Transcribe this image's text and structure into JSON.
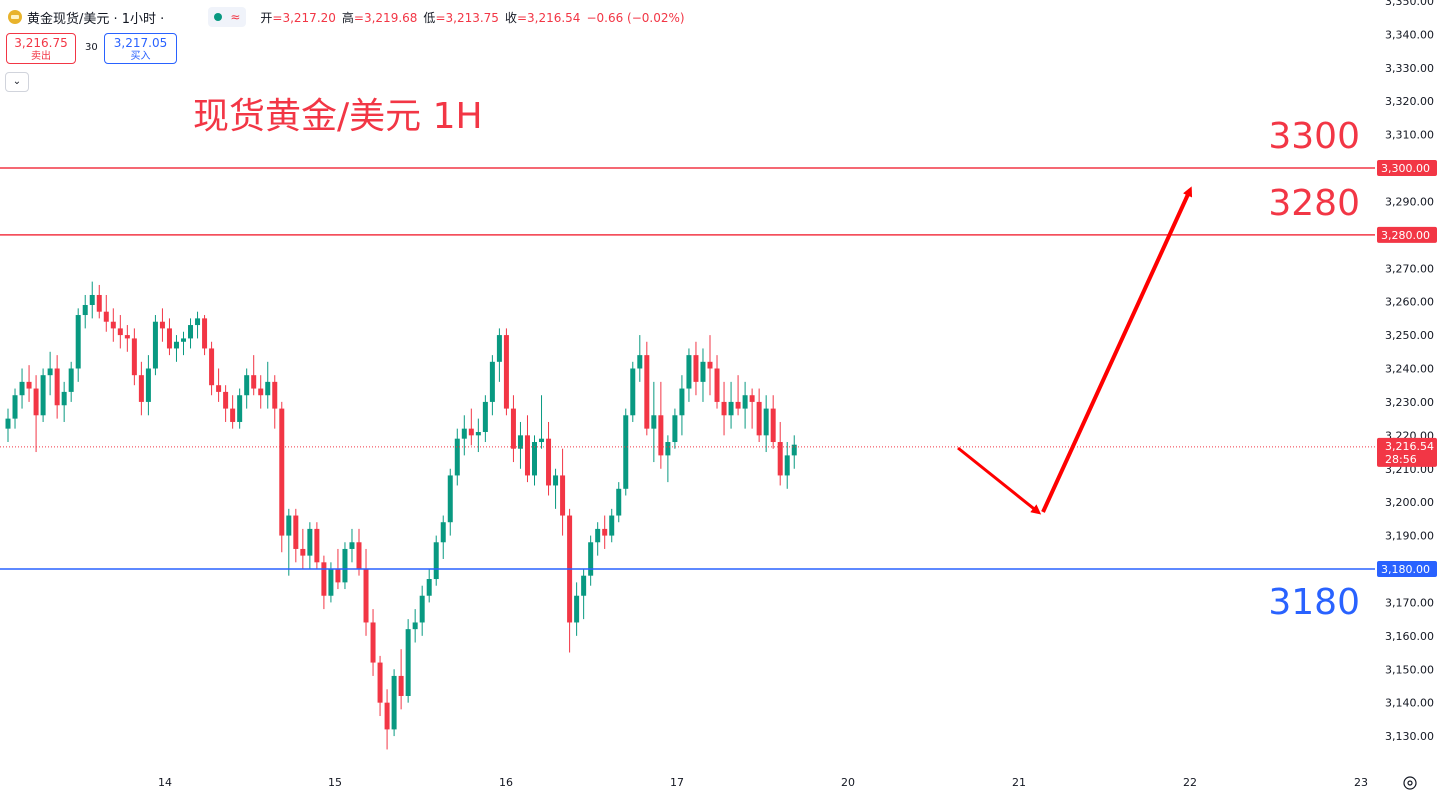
{
  "header": {
    "symbol": "黄金现货/美元 · 1小时 ·",
    "wave_icon": "≈",
    "ohlc": [
      {
        "label": "开",
        "value": "=3,217.20"
      },
      {
        "label": "高",
        "value": "=3,219.68"
      },
      {
        "label": "低",
        "value": "=3,213.75"
      },
      {
        "label": "收",
        "value": "=3,216.54"
      },
      {
        "label": "",
        "value": "−0.66 (−0.02%)"
      }
    ]
  },
  "quote": {
    "sell_price": "3,216.75",
    "sell_label": "卖出",
    "spread": "30",
    "buy_price": "3,217.05",
    "buy_label": "买入"
  },
  "collapse_icon": "⌄",
  "colors": {
    "up": "#089981",
    "down": "#f23645",
    "resistance": "#f23645",
    "support": "#2962ff",
    "arrow": "#ff0000",
    "axis_text": "#131722"
  },
  "chart_data": {
    "type": "candlestick",
    "title": "现货黄金/美元 1H",
    "x_tick_labels": [
      "14",
      "15",
      "16",
      "17",
      "20",
      "21",
      "22",
      "23"
    ],
    "y_tick_labels": [
      "3,130.00",
      "3,140.00",
      "3,150.00",
      "3,160.00",
      "3,170.00",
      "3,180.00",
      "3,190.00",
      "3,200.00",
      "3,210.00",
      "3,220.00",
      "3,230.00",
      "3,240.00",
      "3,250.00",
      "3,260.00",
      "3,270.00",
      "3,280.00",
      "3,290.00",
      "3,300.00",
      "3,310.00",
      "3,320.00",
      "3,330.00",
      "3,340.00",
      "3,350.00"
    ],
    "ylim": [
      3123,
      3358
    ],
    "levels": [
      {
        "value": 3300,
        "label": "3300",
        "axis_label": "3,300.00",
        "color": "#f23645"
      },
      {
        "value": 3280,
        "label": "3280",
        "axis_label": "3,280.00",
        "color": "#f23645"
      },
      {
        "value": 3180,
        "label": "3180",
        "axis_label": "3,180.00",
        "color": "#2962ff"
      }
    ],
    "last_price": {
      "value": 3216.54,
      "label": "3,216.54",
      "countdown": "28:56"
    },
    "candles": [
      [
        3222,
        3228,
        3218,
        3225
      ],
      [
        3225,
        3234,
        3222,
        3232
      ],
      [
        3232,
        3240,
        3228,
        3236
      ],
      [
        3236,
        3241,
        3230,
        3234
      ],
      [
        3234,
        3238,
        3215,
        3226
      ],
      [
        3226,
        3240,
        3224,
        3238
      ],
      [
        3238,
        3245,
        3232,
        3240
      ],
      [
        3240,
        3244,
        3225,
        3229
      ],
      [
        3229,
        3236,
        3224,
        3233
      ],
      [
        3233,
        3242,
        3230,
        3240
      ],
      [
        3240,
        3258,
        3236,
        3256
      ],
      [
        3256,
        3262,
        3252,
        3259
      ],
      [
        3259,
        3266,
        3255,
        3262
      ],
      [
        3262,
        3265,
        3255,
        3257
      ],
      [
        3257,
        3262,
        3251,
        3254
      ],
      [
        3254,
        3258,
        3248,
        3252
      ],
      [
        3252,
        3256,
        3246,
        3250
      ],
      [
        3250,
        3253,
        3245,
        3249
      ],
      [
        3249,
        3252,
        3235,
        3238
      ],
      [
        3238,
        3242,
        3226,
        3230
      ],
      [
        3230,
        3244,
        3226,
        3240
      ],
      [
        3240,
        3256,
        3238,
        3254
      ],
      [
        3254,
        3258,
        3248,
        3252
      ],
      [
        3252,
        3255,
        3244,
        3246
      ],
      [
        3246,
        3250,
        3242,
        3248
      ],
      [
        3248,
        3251,
        3244,
        3249
      ],
      [
        3249,
        3255,
        3246,
        3253
      ],
      [
        3253,
        3257,
        3249,
        3255
      ],
      [
        3255,
        3256,
        3244,
        3246
      ],
      [
        3246,
        3248,
        3232,
        3235
      ],
      [
        3235,
        3240,
        3230,
        3233
      ],
      [
        3233,
        3235,
        3224,
        3228
      ],
      [
        3228,
        3232,
        3222,
        3224
      ],
      [
        3224,
        3234,
        3222,
        3232
      ],
      [
        3232,
        3240,
        3228,
        3238
      ],
      [
        3238,
        3244,
        3232,
        3234
      ],
      [
        3234,
        3238,
        3228,
        3232
      ],
      [
        3232,
        3242,
        3228,
        3236
      ],
      [
        3236,
        3238,
        3222,
        3228
      ],
      [
        3228,
        3230,
        3185,
        3190
      ],
      [
        3190,
        3198,
        3178,
        3196
      ],
      [
        3196,
        3198,
        3182,
        3186
      ],
      [
        3186,
        3192,
        3180,
        3184
      ],
      [
        3184,
        3194,
        3180,
        3192
      ],
      [
        3192,
        3194,
        3180,
        3182
      ],
      [
        3182,
        3184,
        3168,
        3172
      ],
      [
        3172,
        3182,
        3170,
        3180
      ],
      [
        3180,
        3186,
        3174,
        3176
      ],
      [
        3176,
        3188,
        3174,
        3186
      ],
      [
        3186,
        3192,
        3182,
        3188
      ],
      [
        3188,
        3192,
        3178,
        3180
      ],
      [
        3180,
        3186,
        3160,
        3164
      ],
      [
        3164,
        3168,
        3148,
        3152
      ],
      [
        3152,
        3154,
        3136,
        3140
      ],
      [
        3140,
        3144,
        3126,
        3132
      ],
      [
        3132,
        3150,
        3130,
        3148
      ],
      [
        3148,
        3156,
        3138,
        3142
      ],
      [
        3142,
        3165,
        3140,
        3162
      ],
      [
        3162,
        3168,
        3158,
        3164
      ],
      [
        3164,
        3175,
        3160,
        3172
      ],
      [
        3172,
        3180,
        3170,
        3177
      ],
      [
        3177,
        3190,
        3175,
        3188
      ],
      [
        3188,
        3196,
        3183,
        3194
      ],
      [
        3194,
        3210,
        3190,
        3208
      ],
      [
        3208,
        3222,
        3205,
        3219
      ],
      [
        3219,
        3226,
        3214,
        3222
      ],
      [
        3222,
        3228,
        3217,
        3220
      ],
      [
        3220,
        3225,
        3215,
        3221
      ],
      [
        3221,
        3232,
        3218,
        3230
      ],
      [
        3230,
        3244,
        3226,
        3242
      ],
      [
        3242,
        3252,
        3236,
        3250
      ],
      [
        3250,
        3252,
        3226,
        3228
      ],
      [
        3228,
        3232,
        3212,
        3216
      ],
      [
        3216,
        3224,
        3210,
        3220
      ],
      [
        3220,
        3226,
        3206,
        3208
      ],
      [
        3208,
        3220,
        3205,
        3218
      ],
      [
        3218,
        3232,
        3216,
        3219
      ],
      [
        3219,
        3224,
        3202,
        3205
      ],
      [
        3205,
        3210,
        3198,
        3208
      ],
      [
        3208,
        3216,
        3190,
        3196
      ],
      [
        3196,
        3198,
        3155,
        3164
      ],
      [
        3164,
        3176,
        3160,
        3172
      ],
      [
        3172,
        3180,
        3165,
        3178
      ],
      [
        3178,
        3190,
        3175,
        3188
      ],
      [
        3188,
        3194,
        3184,
        3192
      ],
      [
        3192,
        3196,
        3186,
        3190
      ],
      [
        3190,
        3198,
        3188,
        3196
      ],
      [
        3196,
        3206,
        3194,
        3204
      ],
      [
        3204,
        3228,
        3202,
        3226
      ],
      [
        3226,
        3242,
        3224,
        3240
      ],
      [
        3240,
        3250,
        3236,
        3244
      ],
      [
        3244,
        3248,
        3220,
        3222
      ],
      [
        3222,
        3236,
        3212,
        3226
      ],
      [
        3226,
        3236,
        3210,
        3214
      ],
      [
        3214,
        3220,
        3206,
        3218
      ],
      [
        3218,
        3228,
        3216,
        3226
      ],
      [
        3226,
        3238,
        3220,
        3234
      ],
      [
        3234,
        3246,
        3230,
        3244
      ],
      [
        3244,
        3248,
        3232,
        3236
      ],
      [
        3236,
        3246,
        3230,
        3242
      ],
      [
        3242,
        3250,
        3232,
        3240
      ],
      [
        3240,
        3244,
        3228,
        3230
      ],
      [
        3230,
        3236,
        3220,
        3226
      ],
      [
        3226,
        3236,
        3222,
        3230
      ],
      [
        3230,
        3238,
        3226,
        3228
      ],
      [
        3228,
        3236,
        3222,
        3232
      ],
      [
        3232,
        3234,
        3222,
        3230
      ],
      [
        3230,
        3234,
        3218,
        3220
      ],
      [
        3220,
        3232,
        3215,
        3228
      ],
      [
        3228,
        3232,
        3216,
        3218
      ],
      [
        3218,
        3224,
        3205,
        3208
      ],
      [
        3208,
        3218,
        3204,
        3214
      ],
      [
        3214,
        3220,
        3210,
        3217.2
      ]
    ]
  }
}
